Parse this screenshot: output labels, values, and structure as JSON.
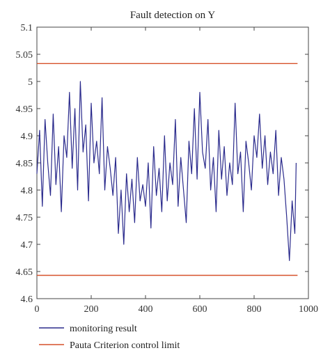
{
  "chart_data": {
    "type": "line",
    "title": "Fault detection on Y",
    "xlabel": "",
    "ylabel": "",
    "xlim": [
      0,
      1000
    ],
    "ylim": [
      4.6,
      5.1
    ],
    "xticks": [
      "0",
      "200",
      "400",
      "600",
      "800",
      "1000"
    ],
    "yticks": [
      "4.6",
      "4.65",
      "4.7",
      "4.75",
      "4.8",
      "4.85",
      "4.9",
      "4.95",
      "5",
      "5.05",
      "5.1"
    ],
    "grid": false,
    "legend_position": "bottom",
    "series": [
      {
        "name": "monitoring result",
        "color": "#2a2a8c",
        "x": [
          0,
          10,
          20,
          30,
          40,
          50,
          60,
          70,
          80,
          90,
          100,
          110,
          120,
          130,
          140,
          150,
          160,
          170,
          180,
          190,
          200,
          210,
          220,
          230,
          240,
          250,
          260,
          270,
          280,
          290,
          300,
          310,
          320,
          330,
          340,
          350,
          360,
          370,
          380,
          390,
          400,
          410,
          420,
          430,
          440,
          450,
          460,
          470,
          480,
          490,
          500,
          510,
          520,
          530,
          540,
          550,
          560,
          570,
          580,
          590,
          600,
          610,
          620,
          630,
          640,
          650,
          660,
          670,
          680,
          690,
          700,
          710,
          720,
          730,
          740,
          750,
          760,
          770,
          780,
          790,
          800,
          810,
          820,
          830,
          840,
          850,
          860,
          870,
          880,
          890,
          900,
          910,
          920,
          930,
          940,
          950,
          955
        ],
        "values": [
          4.83,
          4.91,
          4.77,
          4.93,
          4.85,
          4.79,
          4.94,
          4.81,
          4.88,
          4.76,
          4.9,
          4.86,
          4.98,
          4.84,
          4.95,
          4.8,
          5.0,
          4.87,
          4.92,
          4.78,
          4.96,
          4.85,
          4.89,
          4.83,
          4.97,
          4.8,
          4.88,
          4.84,
          4.79,
          4.86,
          4.72,
          4.8,
          4.7,
          4.83,
          4.76,
          4.82,
          4.74,
          4.86,
          4.78,
          4.81,
          4.77,
          4.85,
          4.73,
          4.88,
          4.79,
          4.84,
          4.76,
          4.9,
          4.78,
          4.85,
          4.81,
          4.93,
          4.77,
          4.86,
          4.8,
          4.74,
          4.89,
          4.83,
          4.95,
          4.82,
          4.98,
          4.87,
          4.84,
          4.93,
          4.8,
          4.86,
          4.76,
          4.91,
          4.82,
          4.88,
          4.79,
          4.85,
          4.81,
          4.96,
          4.83,
          4.87,
          4.76,
          4.89,
          4.85,
          4.8,
          4.9,
          4.86,
          4.94,
          4.84,
          4.9,
          4.81,
          4.87,
          4.83,
          4.91,
          4.79,
          4.86,
          4.82,
          4.75,
          4.67,
          4.78,
          4.72,
          4.85
        ]
      },
      {
        "name": "Pauta Criterion control limit",
        "color": "#d6512a",
        "x": [
          0,
          960
        ],
        "values": [
          5.033,
          5.033
        ]
      },
      {
        "name": "",
        "color": "#d6512a",
        "x": [
          0,
          960
        ],
        "values": [
          4.643,
          4.643
        ]
      }
    ]
  }
}
